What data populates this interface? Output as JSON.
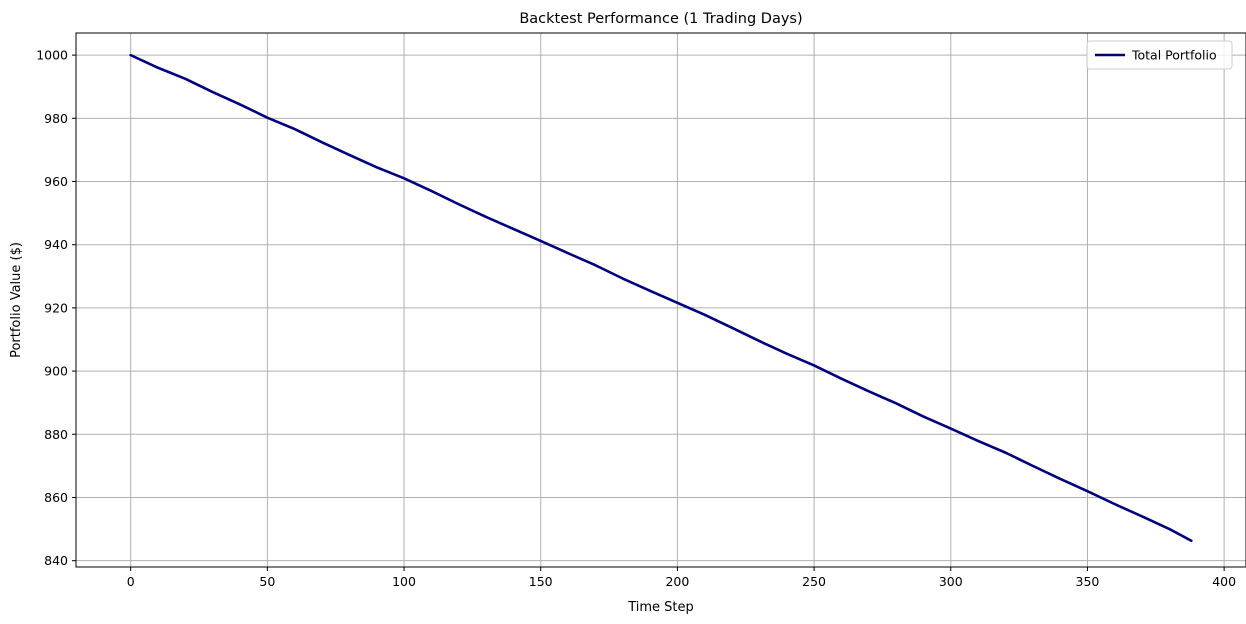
{
  "chart_data": {
    "type": "line",
    "title": "Backtest Performance (1 Trading Days)",
    "xlabel": "Time Step",
    "ylabel": "Portfolio Value ($)",
    "xlim": [
      -20,
      408
    ],
    "ylim": [
      838,
      1007
    ],
    "x_ticks": [
      0,
      50,
      100,
      150,
      200,
      250,
      300,
      350,
      400
    ],
    "x_tick_labels": [
      "0",
      "50",
      "100",
      "150",
      "200",
      "250",
      "300",
      "350",
      "400"
    ],
    "y_ticks": [
      840,
      860,
      880,
      900,
      920,
      940,
      960,
      980,
      1000
    ],
    "y_tick_labels": [
      "840",
      "860",
      "880",
      "900",
      "920",
      "940",
      "960",
      "980",
      "1000"
    ],
    "grid": true,
    "legend_position": "top-right",
    "series": [
      {
        "name": "Total Portfolio",
        "color": "#00007f",
        "x": [
          0,
          10,
          20,
          30,
          40,
          50,
          60,
          70,
          80,
          90,
          100,
          110,
          120,
          130,
          140,
          150,
          160,
          170,
          180,
          190,
          200,
          210,
          220,
          230,
          240,
          250,
          260,
          270,
          280,
          290,
          300,
          310,
          320,
          330,
          340,
          350,
          360,
          370,
          380,
          388
        ],
        "values": [
          1000,
          996.0,
          992.5,
          988.3,
          984.4,
          980.2,
          976.6,
          972.4,
          968.4,
          964.5,
          961.0,
          957.0,
          952.8,
          948.8,
          945.0,
          941.2,
          937.3,
          933.5,
          929.3,
          925.4,
          921.6,
          917.8,
          913.7,
          909.5,
          905.5,
          901.8,
          897.6,
          893.6,
          889.8,
          885.6,
          881.8,
          877.9,
          874.2,
          870.0,
          865.9,
          862.0,
          857.9,
          854.0,
          850.0,
          846.3
        ]
      }
    ]
  }
}
